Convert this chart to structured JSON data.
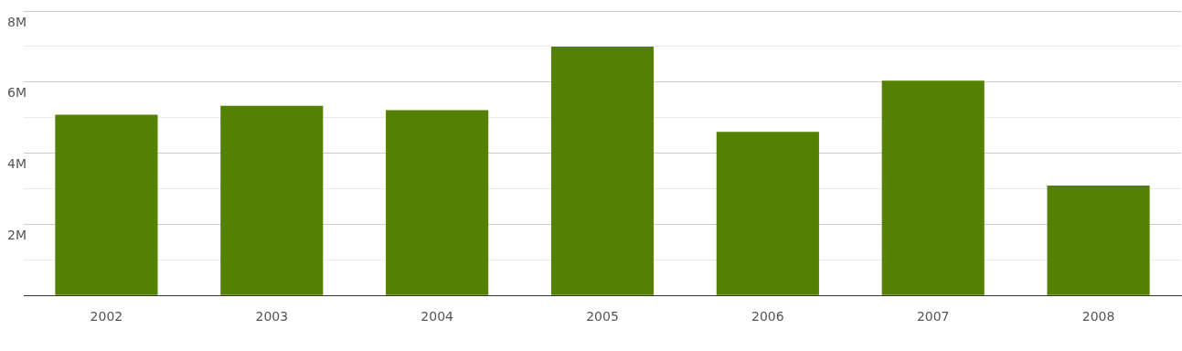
{
  "chart_data": {
    "type": "bar",
    "categories": [
      "2002",
      "2003",
      "2004",
      "2005",
      "2006",
      "2007",
      "2008"
    ],
    "values": [
      5080000,
      5330000,
      5210000,
      7000000,
      4600000,
      6040000,
      3090000
    ],
    "color": "#548102",
    "ylim": [
      0,
      8000000
    ],
    "yticks": [
      {
        "value": 0,
        "label": null
      },
      {
        "value": 1000000,
        "label": null
      },
      {
        "value": 2000000,
        "label": "2M"
      },
      {
        "value": 3000000,
        "label": null
      },
      {
        "value": 4000000,
        "label": "4M"
      },
      {
        "value": 5000000,
        "label": null
      },
      {
        "value": 6000000,
        "label": "6M"
      },
      {
        "value": 7000000,
        "label": null
      },
      {
        "value": 8000000,
        "label": "8M"
      }
    ],
    "grid": true,
    "legend": false
  }
}
